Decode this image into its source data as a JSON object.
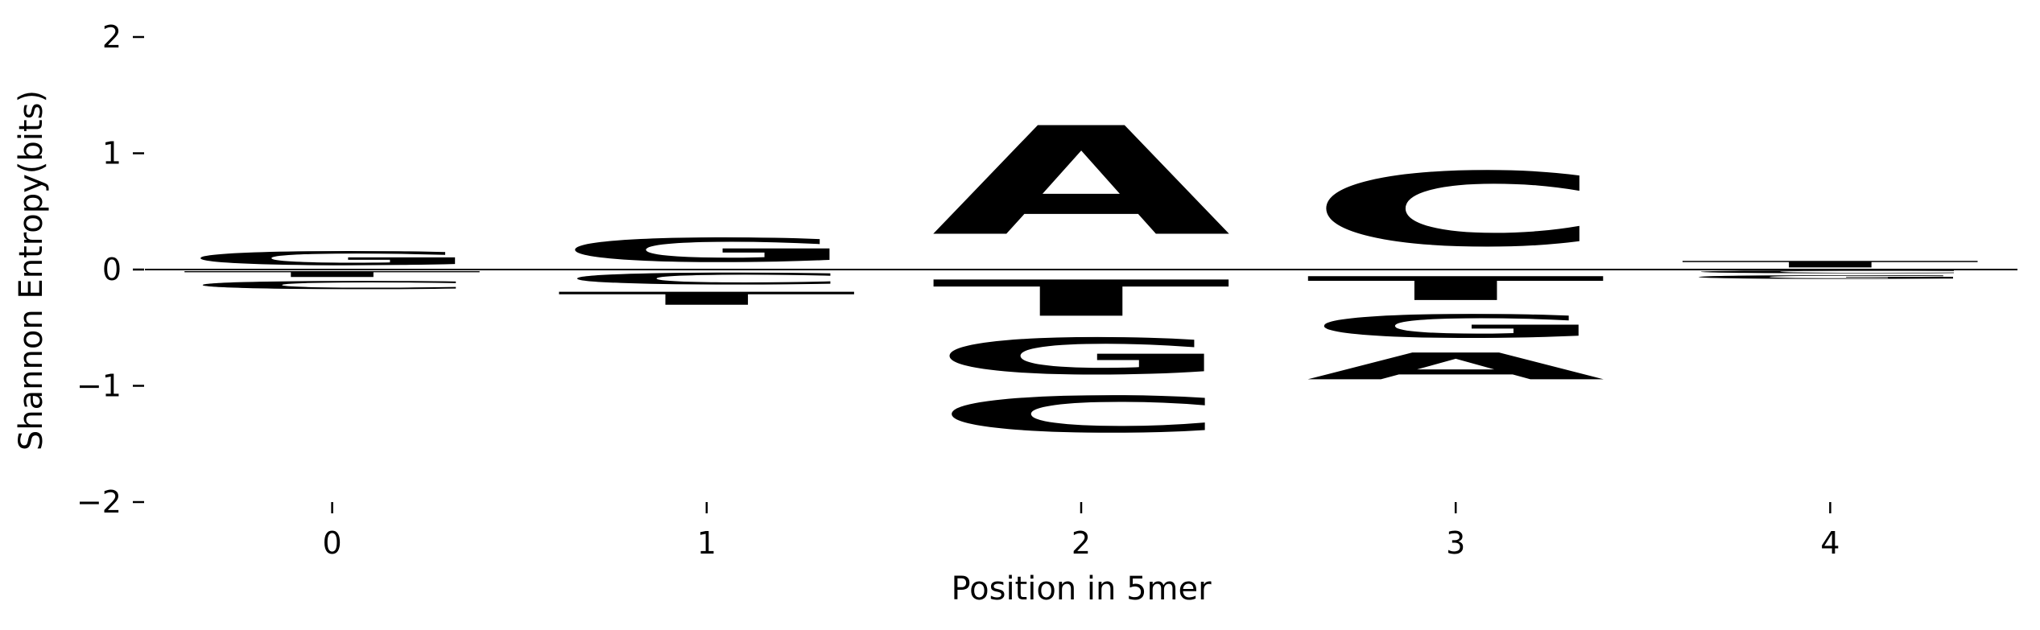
{
  "chart_data": {
    "type": "sequence-logo",
    "xlabel": "Position in 5mer",
    "ylabel": "Shannon Entropy(bits)",
    "ylim": [
      -2,
      2
    ],
    "xlim": [
      -0.5,
      4.5
    ],
    "x_ticks": [
      0,
      1,
      2,
      3,
      4
    ],
    "y_ticks": [
      {
        "value": 2,
        "label": "2"
      },
      {
        "value": 1,
        "label": "1"
      },
      {
        "value": 0,
        "label": "0"
      },
      {
        "value": -1,
        "label": "−1"
      },
      {
        "value": -2,
        "label": "−2"
      }
    ],
    "colors": {
      "A": "#008000",
      "C": "#0000ff",
      "G": "#ffa500",
      "T": "#ff0000"
    },
    "baseline": 0,
    "positions": [
      {
        "position": 0,
        "letters": [
          {
            "base": "G",
            "y0": 0.0,
            "y1": 0.19
          },
          {
            "base": "T",
            "y0": -0.08,
            "y1": 0.0
          },
          {
            "base": "C",
            "y0": -0.19,
            "y1": -0.08
          }
        ]
      },
      {
        "position": 1,
        "letters": [
          {
            "base": "G",
            "y0": 0.0,
            "y1": 0.33
          },
          {
            "base": "C",
            "y0": -0.16,
            "y1": 0.0
          },
          {
            "base": "T",
            "y0": -0.34,
            "y1": -0.16
          }
        ]
      },
      {
        "position": 2,
        "letters": [
          {
            "base": "A",
            "y0": 0.0,
            "y1": 1.5
          },
          {
            "base": "T",
            "y0": -0.5,
            "y1": 0.0
          },
          {
            "base": "G",
            "y0": -1.0,
            "y1": -0.5
          },
          {
            "base": "C",
            "y0": -1.5,
            "y1": -1.0
          }
        ]
      },
      {
        "position": 3,
        "letters": [
          {
            "base": "C",
            "y0": 0.0,
            "y1": 1.02
          },
          {
            "base": "T",
            "y0": -0.33,
            "y1": 0.0
          },
          {
            "base": "G",
            "y0": -0.65,
            "y1": -0.33
          },
          {
            "base": "A",
            "y0": -1.02,
            "y1": -0.65
          }
        ]
      },
      {
        "position": 4,
        "letters": [
          {
            "base": "T",
            "y0": 0.0,
            "y1": 0.09
          },
          {
            "base": "C",
            "y0": -0.04,
            "y1": 0.0
          },
          {
            "base": "G",
            "y0": -0.09,
            "y1": -0.04
          }
        ]
      }
    ]
  }
}
